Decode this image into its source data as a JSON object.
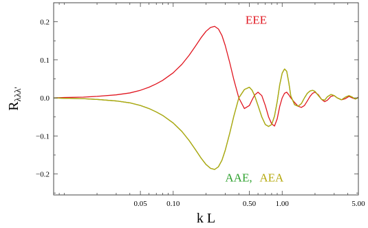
{
  "chart_data": {
    "type": "line",
    "xlabel": "k L",
    "ylabel": "R",
    "ylabel_subscript": "λλλ'",
    "x_scale": "log",
    "xlim": [
      0.008,
      5.0
    ],
    "ylim": [
      -0.255,
      0.25
    ],
    "x_ticks": [
      {
        "value": 0.05,
        "label": "0.05"
      },
      {
        "value": 0.1,
        "label": "0.10"
      },
      {
        "value": 0.5,
        "label": "0.50"
      },
      {
        "value": 1.0,
        "label": "1.00"
      },
      {
        "value": 5.0,
        "label": "5.00"
      }
    ],
    "y_ticks": [
      {
        "value": 0.2,
        "label": "0.2"
      },
      {
        "value": 0.1,
        "label": "0.1"
      },
      {
        "value": 0.0,
        "label": "0.0"
      },
      {
        "value": -0.1,
        "label": "−0.1"
      },
      {
        "value": -0.2,
        "label": "−0.2"
      }
    ],
    "x": [
      0.008,
      0.01,
      0.015,
      0.02,
      0.03,
      0.04,
      0.05,
      0.06,
      0.07,
      0.08,
      0.1,
      0.12,
      0.14,
      0.16,
      0.18,
      0.2,
      0.22,
      0.24,
      0.26,
      0.28,
      0.3,
      0.33,
      0.36,
      0.4,
      0.45,
      0.5,
      0.53,
      0.56,
      0.6,
      0.65,
      0.7,
      0.75,
      0.8,
      0.85,
      0.9,
      0.95,
      1.0,
      1.05,
      1.1,
      1.15,
      1.2,
      1.3,
      1.4,
      1.5,
      1.6,
      1.7,
      1.8,
      1.9,
      2.0,
      2.15,
      2.3,
      2.45,
      2.6,
      2.8,
      3.0,
      3.2,
      3.5,
      3.8,
      4.1,
      4.4,
      4.7,
      5.0
    ],
    "series": [
      {
        "name": "EEE",
        "color": "#e0141e",
        "values": [
          0.0,
          0.001,
          0.002,
          0.004,
          0.008,
          0.013,
          0.02,
          0.028,
          0.037,
          0.046,
          0.066,
          0.088,
          0.112,
          0.136,
          0.158,
          0.175,
          0.185,
          0.188,
          0.181,
          0.164,
          0.138,
          0.093,
          0.048,
          0.0,
          -0.028,
          -0.02,
          -0.005,
          0.008,
          0.015,
          0.006,
          -0.02,
          -0.05,
          -0.068,
          -0.074,
          -0.055,
          -0.022,
          0.0,
          0.012,
          0.015,
          0.008,
          0.0,
          -0.012,
          -0.022,
          -0.025,
          -0.02,
          -0.008,
          0.004,
          0.012,
          0.015,
          0.008,
          -0.004,
          -0.01,
          -0.006,
          0.004,
          0.006,
          0.0,
          -0.005,
          -0.002,
          0.004,
          0.0,
          -0.003,
          0.002
        ]
      },
      {
        "name": "AAE",
        "color": "#2ca02c",
        "values": [
          0.0,
          -0.001,
          -0.002,
          -0.004,
          -0.008,
          -0.013,
          -0.02,
          -0.028,
          -0.037,
          -0.046,
          -0.066,
          -0.088,
          -0.112,
          -0.136,
          -0.158,
          -0.175,
          -0.185,
          -0.188,
          -0.181,
          -0.164,
          -0.138,
          -0.093,
          -0.048,
          0.0,
          0.022,
          0.028,
          0.02,
          0.005,
          -0.02,
          -0.05,
          -0.07,
          -0.075,
          -0.07,
          -0.048,
          -0.01,
          0.035,
          0.065,
          0.076,
          0.07,
          0.04,
          0.005,
          -0.018,
          -0.022,
          -0.015,
          0.0,
          0.012,
          0.018,
          0.02,
          0.017,
          0.006,
          -0.004,
          -0.006,
          0.003,
          0.009,
          0.006,
          0.0,
          -0.005,
          0.002,
          0.006,
          0.002,
          -0.003,
          0.001
        ]
      },
      {
        "name": "AEA",
        "color": "#b5a80c",
        "values": [
          0.0,
          -0.001,
          -0.002,
          -0.004,
          -0.008,
          -0.013,
          -0.02,
          -0.028,
          -0.037,
          -0.046,
          -0.066,
          -0.088,
          -0.112,
          -0.136,
          -0.158,
          -0.175,
          -0.185,
          -0.188,
          -0.181,
          -0.164,
          -0.138,
          -0.093,
          -0.048,
          0.0,
          0.022,
          0.028,
          0.02,
          0.005,
          -0.02,
          -0.05,
          -0.07,
          -0.075,
          -0.07,
          -0.048,
          -0.01,
          0.035,
          0.065,
          0.076,
          0.07,
          0.04,
          0.005,
          -0.018,
          -0.022,
          -0.015,
          0.0,
          0.012,
          0.018,
          0.02,
          0.017,
          0.006,
          -0.004,
          -0.006,
          0.003,
          0.009,
          0.006,
          0.0,
          -0.005,
          0.002,
          0.006,
          0.002,
          -0.003,
          0.001
        ]
      }
    ],
    "annotations": {
      "top": {
        "text": "EEE",
        "color": "#e0141e"
      },
      "bottom_first": {
        "text": "AAE,",
        "color": "#2ca02c"
      },
      "bottom_second": {
        "text": "AEA",
        "color": "#b5a80c"
      }
    },
    "grid": false,
    "legend": "none"
  }
}
